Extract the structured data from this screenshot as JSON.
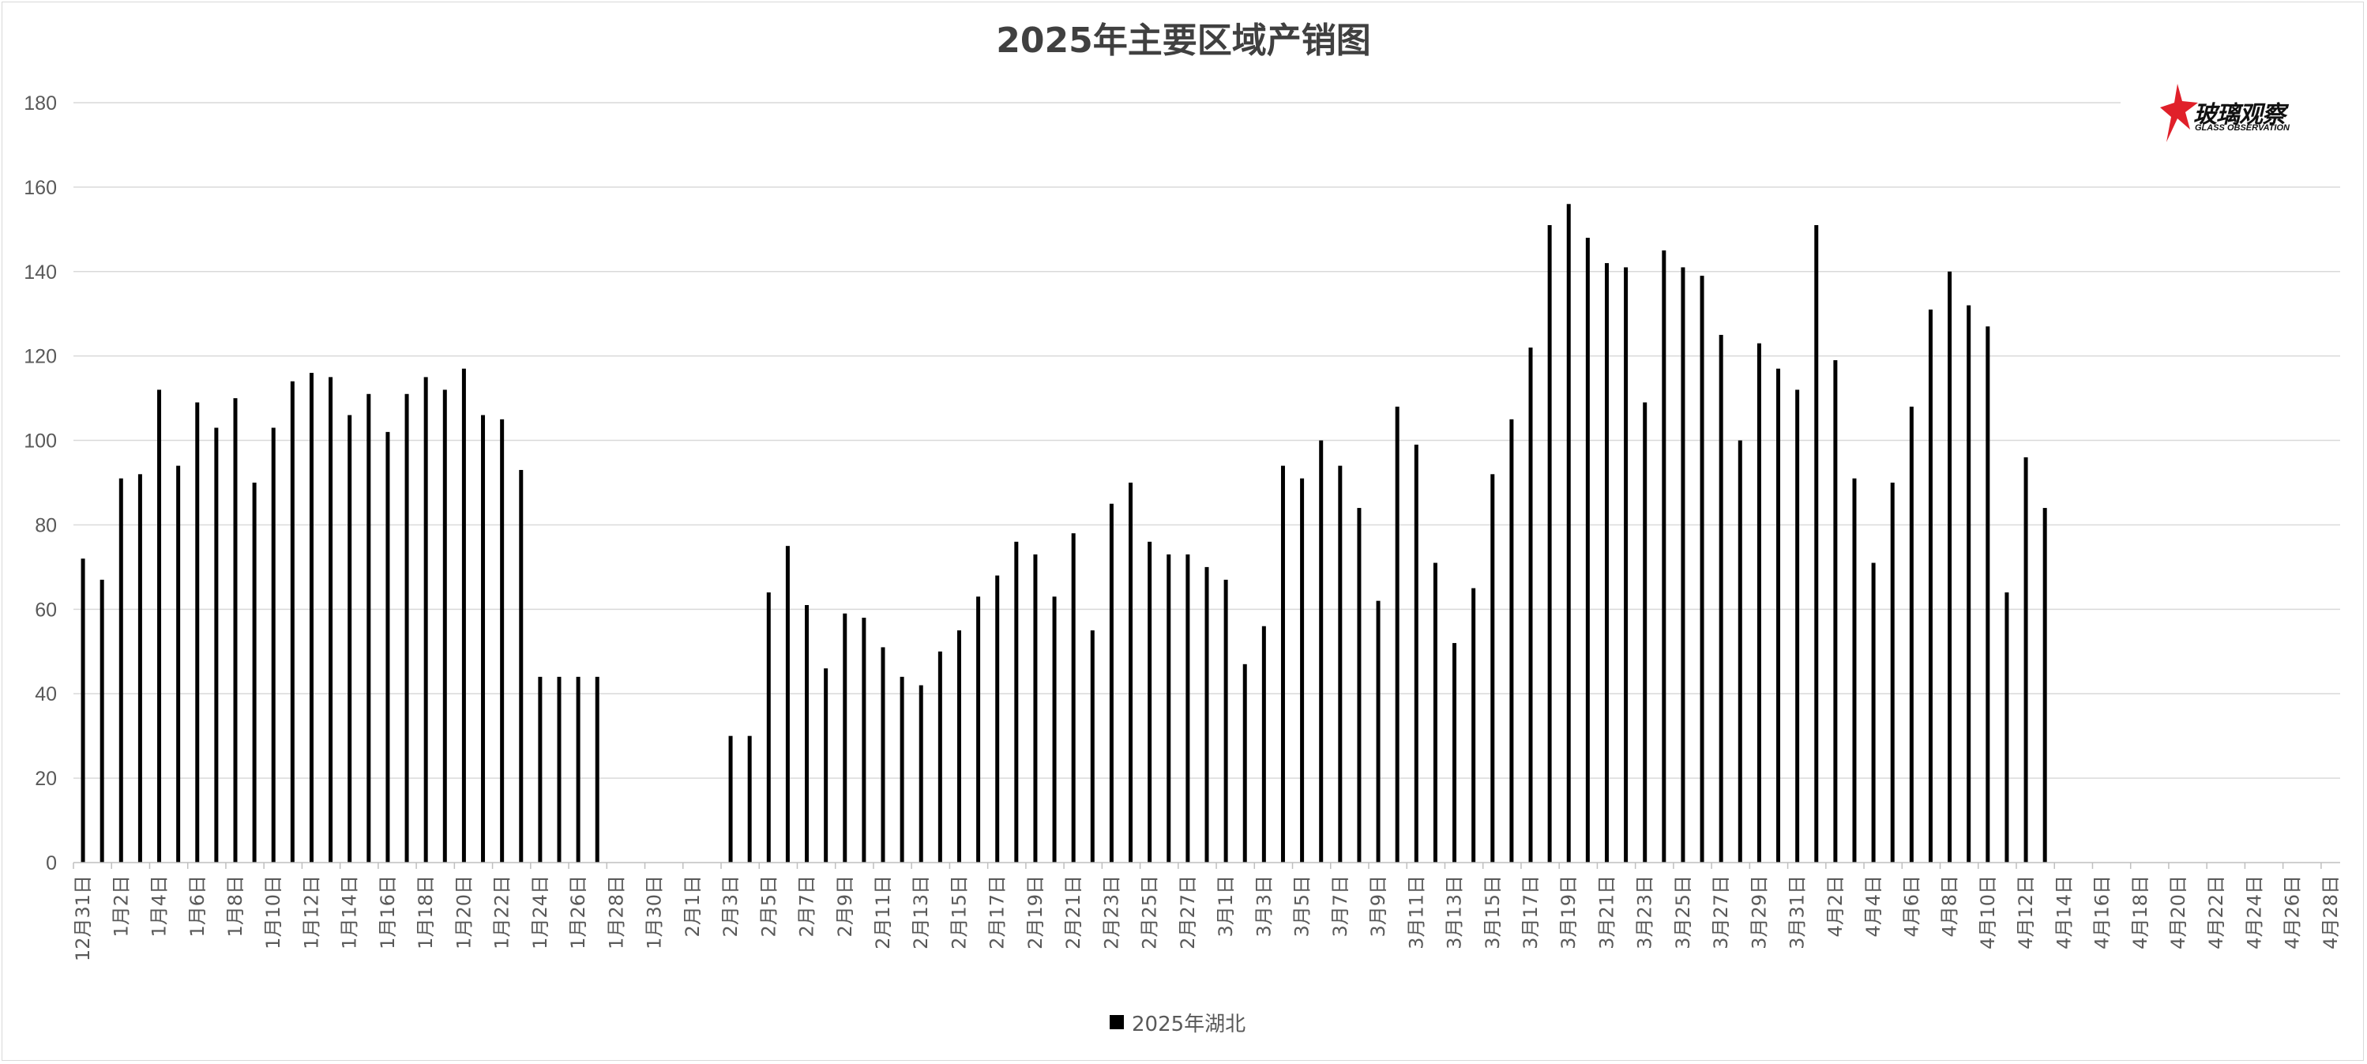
{
  "chart_data": {
    "type": "bar",
    "title": "2025年主要区域产销图",
    "xlabel": "",
    "ylabel": "",
    "ylim": [
      0,
      180
    ],
    "yticks": [
      0,
      20,
      40,
      60,
      80,
      100,
      120,
      140,
      160,
      180
    ],
    "grid": true,
    "legend_position": "bottom",
    "bar_color": "#000000",
    "categories": [
      "12月31日",
      "1月1日",
      "1月2日",
      "1月3日",
      "1月4日",
      "1月5日",
      "1月6日",
      "1月7日",
      "1月8日",
      "1月9日",
      "1月10日",
      "1月11日",
      "1月12日",
      "1月13日",
      "1月14日",
      "1月15日",
      "1月16日",
      "1月17日",
      "1月18日",
      "1月19日",
      "1月20日",
      "1月21日",
      "1月22日",
      "1月23日",
      "1月24日",
      "1月25日",
      "1月26日",
      "1月27日",
      "1月28日",
      "1月29日",
      "1月30日",
      "1月31日",
      "2月1日",
      "2月2日",
      "2月3日",
      "2月4日",
      "2月5日",
      "2月6日",
      "2月7日",
      "2月8日",
      "2月9日",
      "2月10日",
      "2月11日",
      "2月12日",
      "2月13日",
      "2月14日",
      "2月15日",
      "2月16日",
      "2月17日",
      "2月18日",
      "2月19日",
      "2月20日",
      "2月21日",
      "2月22日",
      "2月23日",
      "2月24日",
      "2月25日",
      "2月26日",
      "2月27日",
      "2月28日",
      "3月1日",
      "3月2日",
      "3月3日",
      "3月4日",
      "3月5日",
      "3月6日",
      "3月7日",
      "3月8日",
      "3月9日",
      "3月10日",
      "3月11日",
      "3月12日",
      "3月13日",
      "3月14日",
      "3月15日",
      "3月16日",
      "3月17日",
      "3月18日",
      "3月19日",
      "3月20日",
      "3月21日",
      "3月22日",
      "3月23日",
      "3月24日",
      "3月25日",
      "3月26日",
      "3月27日",
      "3月28日",
      "3月29日",
      "3月30日",
      "3月31日",
      "4月1日",
      "4月2日",
      "4月3日",
      "4月4日",
      "4月5日",
      "4月6日",
      "4月7日",
      "4月8日",
      "4月9日",
      "4月10日",
      "4月11日",
      "4月12日",
      "4月13日",
      "4月14日",
      "4月15日",
      "4月16日",
      "4月17日",
      "4月18日",
      "4月19日",
      "4月20日",
      "4月21日",
      "4月22日",
      "4月23日",
      "4月24日",
      "4月25日",
      "4月26日",
      "4月27日",
      "4月28日"
    ],
    "series": [
      {
        "name": "2025年湖北",
        "values": [
          72,
          67,
          91,
          92,
          112,
          94,
          109,
          103,
          110,
          90,
          103,
          114,
          116,
          115,
          106,
          111,
          102,
          111,
          115,
          112,
          117,
          106,
          105,
          93,
          44,
          44,
          44,
          44,
          null,
          null,
          null,
          null,
          null,
          null,
          30,
          30,
          64,
          75,
          61,
          46,
          59,
          58,
          51,
          44,
          42,
          50,
          55,
          63,
          68,
          76,
          73,
          63,
          78,
          55,
          85,
          90,
          76,
          73,
          73,
          70,
          67,
          47,
          56,
          94,
          91,
          100,
          94,
          84,
          62,
          108,
          99,
          71,
          52,
          65,
          92,
          105,
          122,
          151,
          156,
          148,
          142,
          141,
          109,
          145,
          141,
          139,
          125,
          100,
          123,
          117,
          112,
          151,
          119,
          91,
          71,
          90,
          108,
          131,
          140,
          132,
          127,
          64,
          96,
          84,
          null,
          null,
          null,
          null,
          null,
          null,
          null,
          null,
          null,
          null,
          null,
          null,
          null,
          null,
          null
        ]
      }
    ]
  },
  "legend": {
    "label": "2025年湖北"
  },
  "logo": {
    "cn": "玻璃观察",
    "en": "GLASS OBSERVATION",
    "accent": "#e0202a"
  }
}
